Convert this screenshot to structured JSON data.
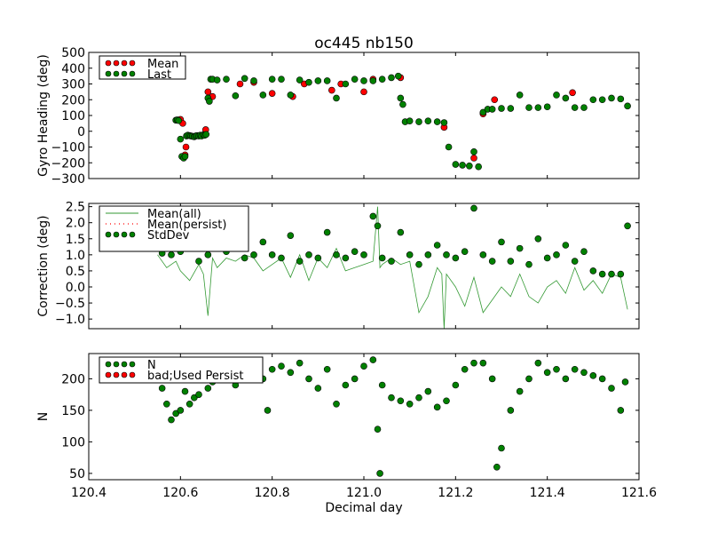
{
  "figure_title": "oc445 nb150",
  "colors": {
    "green": "#008000",
    "red": "#ff0000",
    "mean_line": "#339933",
    "axes": "#000000"
  },
  "chart_data": [
    {
      "type": "scatter",
      "ylabel": "Gyro Heading (deg)",
      "xlim": [
        120.4,
        121.6
      ],
      "ylim": [
        -300,
        500
      ],
      "yticks": [
        500,
        400,
        300,
        200,
        100,
        0,
        -100,
        -200,
        -300
      ],
      "yticklabels": [
        "500",
        "400",
        "300",
        "200",
        "100",
        "0",
        "−100",
        "−200",
        "−300"
      ],
      "legend": {
        "position": "upper-left",
        "entries": [
          "Mean",
          "Last"
        ]
      },
      "series": [
        {
          "name": "Mean",
          "color": "#ff0000",
          "marker": "circle",
          "x": [
            120.6,
            120.605,
            120.61,
            120.612,
            120.655,
            120.66,
            120.67,
            120.73,
            120.76,
            120.8,
            120.845,
            120.87,
            120.93,
            120.95,
            121.0,
            121.02,
            121.08,
            121.175,
            121.24,
            121.26,
            121.285,
            121.455
          ],
          "y": [
            75,
            50,
            -150,
            -100,
            10,
            250,
            220,
            300,
            310,
            240,
            220,
            300,
            260,
            300,
            250,
            330,
            340,
            25,
            -170,
            110,
            200,
            245
          ]
        },
        {
          "name": "Last",
          "color": "#008000",
          "marker": "circle",
          "x": [
            120.59,
            120.593,
            120.596,
            120.6,
            120.603,
            120.607,
            120.61,
            120.613,
            120.616,
            120.62,
            120.623,
            120.626,
            120.63,
            120.633,
            120.636,
            120.64,
            120.643,
            120.646,
            120.65,
            120.653,
            120.656,
            120.66,
            120.663,
            120.666,
            120.67,
            120.68,
            120.7,
            120.72,
            120.74,
            120.76,
            120.78,
            120.8,
            120.82,
            120.84,
            120.86,
            120.88,
            120.9,
            120.92,
            120.94,
            120.96,
            120.98,
            121.0,
            121.02,
            121.04,
            121.06,
            121.075,
            121.08,
            121.085,
            121.09,
            121.1,
            121.12,
            121.14,
            121.16,
            121.175,
            121.185,
            121.2,
            121.215,
            121.23,
            121.24,
            121.25,
            121.26,
            121.27,
            121.28,
            121.3,
            121.32,
            121.34,
            121.36,
            121.38,
            121.4,
            121.42,
            121.44,
            121.46,
            121.48,
            121.5,
            121.52,
            121.54,
            121.56,
            121.575
          ],
          "y": [
            70,
            72,
            68,
            -50,
            -160,
            -170,
            -160,
            -30,
            -25,
            -28,
            -30,
            -32,
            -35,
            -30,
            -28,
            -30,
            -25,
            -30,
            -22,
            -25,
            -20,
            210,
            190,
            330,
            330,
            325,
            330,
            225,
            335,
            320,
            230,
            330,
            330,
            230,
            325,
            310,
            320,
            320,
            210,
            300,
            330,
            320,
            320,
            330,
            340,
            350,
            210,
            170,
            60,
            65,
            60,
            65,
            60,
            55,
            -100,
            -210,
            -215,
            -220,
            -130,
            -225,
            120,
            140,
            140,
            145,
            145,
            230,
            150,
            150,
            155,
            230,
            210,
            150,
            150,
            200,
            200,
            210,
            205,
            160
          ]
        }
      ]
    },
    {
      "type": "line",
      "ylabel": "Correction (deg)",
      "xlim": [
        120.4,
        121.6
      ],
      "ylim": [
        -1.3,
        2.6
      ],
      "yticks": [
        2.5,
        2.0,
        1.5,
        1.0,
        0.5,
        0.0,
        -0.5,
        -1.0
      ],
      "yticklabels": [
        "2.5",
        "2.0",
        "1.5",
        "1.0",
        "0.5",
        "0.0",
        "−0.5",
        "−1.0"
      ],
      "legend": {
        "position": "upper-left",
        "entries": [
          "Mean(all)",
          "Mean(persist)",
          "StdDev"
        ]
      },
      "series": [
        {
          "name": "Mean(all)",
          "color": "#339933",
          "style": "line",
          "x": [
            120.55,
            120.57,
            120.59,
            120.6,
            120.62,
            120.64,
            120.65,
            120.66,
            120.67,
            120.68,
            120.7,
            120.72,
            120.74,
            120.76,
            120.78,
            120.8,
            120.82,
            120.84,
            120.86,
            120.88,
            120.9,
            120.92,
            120.94,
            120.96,
            120.98,
            121.0,
            121.02,
            121.03,
            121.035,
            121.04,
            121.06,
            121.08,
            121.1,
            121.12,
            121.14,
            121.16,
            121.17,
            121.175,
            121.18,
            121.2,
            121.22,
            121.24,
            121.26,
            121.28,
            121.3,
            121.32,
            121.34,
            121.36,
            121.38,
            121.4,
            121.42,
            121.44,
            121.46,
            121.48,
            121.5,
            121.52,
            121.54,
            121.56,
            121.575
          ],
          "y": [
            1.0,
            0.6,
            0.8,
            0.5,
            0.2,
            0.7,
            0.4,
            -0.9,
            0.9,
            0.6,
            0.9,
            0.8,
            1.0,
            0.9,
            0.5,
            0.7,
            0.9,
            0.3,
            1.0,
            0.2,
            0.9,
            0.6,
            1.2,
            0.5,
            0.6,
            0.7,
            0.8,
            2.5,
            0.6,
            0.7,
            0.9,
            0.7,
            0.8,
            -0.8,
            -0.3,
            0.6,
            0.4,
            -1.3,
            0.4,
            0.0,
            -0.6,
            0.3,
            -0.8,
            -0.4,
            0.0,
            -0.3,
            0.4,
            -0.3,
            -0.5,
            0.0,
            0.2,
            -0.2,
            0.6,
            -0.1,
            0.2,
            -0.2,
            0.4,
            0.3,
            -0.7
          ]
        },
        {
          "name": "Mean(persist)",
          "color": "#ff0000",
          "style": "dotted",
          "x": [],
          "y": []
        },
        {
          "name": "StdDev",
          "color": "#008000",
          "marker": "circle",
          "x": [
            120.56,
            120.58,
            120.6,
            120.62,
            120.64,
            120.66,
            120.68,
            120.7,
            120.72,
            120.74,
            120.76,
            120.78,
            120.8,
            120.82,
            120.84,
            120.86,
            120.88,
            120.9,
            120.92,
            120.94,
            120.96,
            120.98,
            121.0,
            121.02,
            121.03,
            121.04,
            121.06,
            121.08,
            121.1,
            121.12,
            121.14,
            121.16,
            121.18,
            121.2,
            121.22,
            121.24,
            121.26,
            121.28,
            121.3,
            121.32,
            121.34,
            121.36,
            121.38,
            121.4,
            121.42,
            121.44,
            121.46,
            121.48,
            121.5,
            121.52,
            121.54,
            121.56,
            121.575
          ],
          "y": [
            1.05,
            1.0,
            1.1,
            1.2,
            0.8,
            1.0,
            1.5,
            1.1,
            1.2,
            0.9,
            1.0,
            1.4,
            1.0,
            0.9,
            1.6,
            0.8,
            1.0,
            0.9,
            1.7,
            1.0,
            0.9,
            1.1,
            1.0,
            2.2,
            1.9,
            0.9,
            0.8,
            1.7,
            1.0,
            0.7,
            1.0,
            1.3,
            1.0,
            0.9,
            1.1,
            2.45,
            1.0,
            0.8,
            1.4,
            0.8,
            1.2,
            0.7,
            1.5,
            0.9,
            1.0,
            1.3,
            0.8,
            1.1,
            0.5,
            0.4,
            0.4,
            0.4,
            1.9
          ]
        }
      ]
    },
    {
      "type": "scatter",
      "ylabel": "N",
      "xlabel": "Decimal day",
      "xlim": [
        120.4,
        121.6
      ],
      "ylim": [
        40,
        240
      ],
      "yticks": [
        200,
        150,
        100,
        50
      ],
      "yticklabels": [
        "200",
        "150",
        "100",
        "50"
      ],
      "xticks": [
        120.4,
        120.6,
        120.8,
        121.0,
        121.2,
        121.4,
        121.6
      ],
      "xticklabels": [
        "120.4",
        "120.6",
        "120.8",
        "121.0",
        "121.2",
        "121.4",
        "121.6"
      ],
      "legend": {
        "position": "upper-left",
        "entries": [
          "N",
          "bad;Used Persist"
        ]
      },
      "series": [
        {
          "name": "N",
          "color": "#008000",
          "marker": "circle",
          "x": [
            120.56,
            120.57,
            120.58,
            120.59,
            120.6,
            120.61,
            120.62,
            120.63,
            120.64,
            120.65,
            120.66,
            120.67,
            120.68,
            120.7,
            120.72,
            120.74,
            120.76,
            120.78,
            120.79,
            120.8,
            120.82,
            120.84,
            120.86,
            120.88,
            120.9,
            120.92,
            120.94,
            120.96,
            120.98,
            121.0,
            121.02,
            121.03,
            121.035,
            121.04,
            121.06,
            121.08,
            121.1,
            121.12,
            121.14,
            121.16,
            121.18,
            121.2,
            121.22,
            121.24,
            121.26,
            121.28,
            121.29,
            121.3,
            121.32,
            121.34,
            121.36,
            121.38,
            121.4,
            121.42,
            121.44,
            121.46,
            121.48,
            121.5,
            121.52,
            121.54,
            121.56,
            121.57
          ],
          "y": [
            185,
            160,
            135,
            145,
            150,
            180,
            160,
            170,
            175,
            200,
            185,
            195,
            210,
            205,
            190,
            215,
            210,
            200,
            150,
            215,
            220,
            210,
            225,
            200,
            185,
            215,
            160,
            190,
            200,
            220,
            230,
            120,
            50,
            190,
            170,
            165,
            160,
            170,
            180,
            155,
            165,
            190,
            215,
            225,
            225,
            200,
            60,
            90,
            150,
            180,
            200,
            225,
            210,
            215,
            200,
            215,
            210,
            205,
            200,
            185,
            150,
            195
          ]
        },
        {
          "name": "bad;Used Persist",
          "color": "#ff0000",
          "marker": "circle",
          "x": [],
          "y": []
        }
      ]
    }
  ]
}
